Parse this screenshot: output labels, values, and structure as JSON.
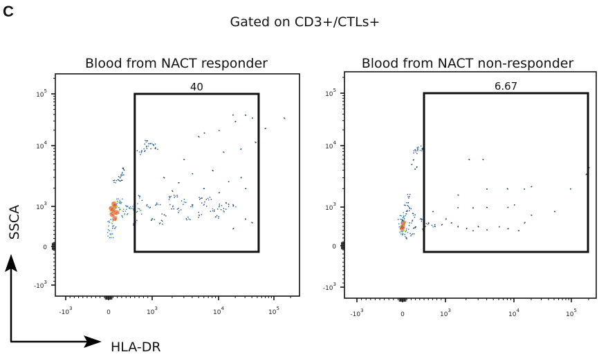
{
  "figure": {
    "panel_letter": "C",
    "title": "Gated on CD3+/CTLs+",
    "y_axis_label": "SSCA",
    "x_axis_label": "HLA-DR"
  },
  "colors": {
    "density": [
      "#1d3f73",
      "#1f74b0",
      "#b9d33e",
      "#e5421b"
    ],
    "gate": "#111111",
    "frame": "#111111"
  },
  "chart_data": [
    {
      "type": "scatter",
      "title": "Blood from NACT responder",
      "xlabel": "HLA-DR",
      "ylabel": "SSCA",
      "x_scale": "biexponential",
      "y_scale": "biexponential",
      "x_ticks": [
        {
          "value": -1000,
          "base": "-10",
          "exp": "3"
        },
        {
          "value": 0,
          "base": "0",
          "exp": ""
        },
        {
          "value": 1000,
          "base": "10",
          "exp": "3"
        },
        {
          "value": 10000,
          "base": "10",
          "exp": "4"
        },
        {
          "value": 100000,
          "base": "10",
          "exp": "5"
        }
      ],
      "y_ticks": [
        {
          "value": -1000,
          "base": "-10",
          "exp": "3"
        },
        {
          "value": 0,
          "base": "0",
          "exp": ""
        },
        {
          "value": 1000,
          "base": "10",
          "exp": "3"
        },
        {
          "value": 10000,
          "base": "10",
          "exp": "4"
        },
        {
          "value": 100000,
          "base": "10",
          "exp": "5"
        }
      ],
      "gate": {
        "label": "40",
        "x_min": 600,
        "x_max": 53000,
        "y_min": -140,
        "y_max": 100000
      },
      "points": [
        [
          100,
          900,
          3
        ],
        [
          150,
          1000,
          3
        ],
        [
          80,
          800,
          3
        ],
        [
          120,
          1100,
          3
        ],
        [
          60,
          950,
          3
        ],
        [
          180,
          850,
          3
        ],
        [
          140,
          700,
          3
        ],
        [
          50,
          600,
          2
        ],
        [
          200,
          1200,
          2
        ],
        [
          300,
          900,
          2
        ],
        [
          400,
          1000,
          2
        ],
        [
          250,
          1300,
          2
        ],
        [
          90,
          500,
          2
        ],
        [
          60,
          400,
          2
        ],
        [
          350,
          800,
          2
        ],
        [
          500,
          950,
          2
        ],
        [
          600,
          1000,
          2
        ],
        [
          700,
          900,
          2
        ],
        [
          40,
          300,
          2
        ],
        [
          900,
          1000,
          1
        ],
        [
          1200,
          1100,
          1
        ],
        [
          1500,
          800,
          1
        ],
        [
          2000,
          1000,
          1
        ],
        [
          2500,
          900,
          1
        ],
        [
          3000,
          1200,
          1
        ],
        [
          4000,
          1000,
          1
        ],
        [
          5000,
          800,
          1
        ],
        [
          6000,
          1100,
          1
        ],
        [
          8000,
          950,
          1
        ],
        [
          10000,
          1000,
          1
        ],
        [
          12000,
          900,
          1
        ],
        [
          15000,
          1100,
          1
        ],
        [
          20000,
          1000,
          1
        ],
        [
          1000,
          700,
          1
        ],
        [
          1800,
          1400,
          1
        ],
        [
          3500,
          700,
          1
        ],
        [
          7000,
          1300,
          1
        ],
        [
          9000,
          750,
          1
        ],
        [
          1300,
          600,
          1
        ],
        [
          2200,
          1500,
          1
        ],
        [
          5500,
          1400,
          1
        ],
        [
          700,
          1400,
          1
        ],
        [
          600,
          600,
          1
        ],
        [
          800,
          9000,
          1
        ],
        [
          900,
          10000,
          1
        ],
        [
          1000,
          11000,
          1
        ],
        [
          700,
          8000,
          1
        ],
        [
          1100,
          9500,
          1
        ],
        [
          850,
          12000,
          1
        ],
        [
          250,
          3000,
          1
        ],
        [
          300,
          3500,
          1
        ],
        [
          200,
          2800,
          1
        ],
        [
          350,
          4000,
          1
        ],
        [
          150,
          2500,
          1
        ],
        [
          1500,
          3000,
          0
        ],
        [
          2500,
          2500,
          0
        ],
        [
          4000,
          3500,
          0
        ],
        [
          6000,
          2000,
          0
        ],
        [
          8000,
          4000,
          0
        ],
        [
          15000,
          2600,
          0
        ],
        [
          25000,
          3000,
          0
        ],
        [
          30000,
          2000,
          0
        ],
        [
          3000,
          6000,
          0
        ],
        [
          5000,
          15000,
          0
        ],
        [
          10000,
          20000,
          0
        ],
        [
          20000,
          30000,
          0
        ],
        [
          30000,
          40000,
          0
        ],
        [
          18000,
          40000,
          0
        ],
        [
          40000,
          35000,
          0
        ],
        [
          12000,
          8000,
          0
        ],
        [
          25000,
          9000,
          0
        ],
        [
          6000,
          18000,
          0
        ],
        [
          45000,
          12000,
          0
        ],
        [
          70000,
          22000,
          0
        ],
        [
          150000,
          35000,
          0
        ],
        [
          2000,
          1800,
          0
        ],
        [
          10000,
          1700,
          0
        ],
        [
          30000,
          700,
          0
        ],
        [
          40000,
          600,
          0
        ],
        [
          18000,
          450,
          0
        ]
      ]
    },
    {
      "type": "scatter",
      "title": "Blood from NACT non-responder",
      "xlabel": "HLA-DR",
      "ylabel": "SSCA",
      "x_scale": "biexponential",
      "y_scale": "biexponential",
      "x_ticks": [
        {
          "value": -1000,
          "base": "-10",
          "exp": "3"
        },
        {
          "value": 0,
          "base": "0",
          "exp": ""
        },
        {
          "value": 1000,
          "base": "10",
          "exp": "3"
        },
        {
          "value": 10000,
          "base": "10",
          "exp": "4"
        },
        {
          "value": 100000,
          "base": "10",
          "exp": "5"
        }
      ],
      "y_ticks": [
        {
          "value": -1000,
          "base": "-10",
          "exp": "3"
        },
        {
          "value": 0,
          "base": "0",
          "exp": ""
        },
        {
          "value": 1000,
          "base": "10",
          "exp": "3"
        },
        {
          "value": 10000,
          "base": "10",
          "exp": "4"
        },
        {
          "value": 100000,
          "base": "10",
          "exp": "5"
        }
      ],
      "gate": {
        "label": "6.67",
        "x_min": 500,
        "x_max": 195000,
        "y_min": -150,
        "y_max": 100000
      },
      "points": [
        [
          0,
          500,
          3
        ],
        [
          20,
          600,
          3
        ],
        [
          -10,
          450,
          3
        ],
        [
          30,
          700,
          2
        ],
        [
          -40,
          550,
          2
        ],
        [
          60,
          400,
          2
        ],
        [
          10,
          800,
          2
        ],
        [
          -20,
          350,
          2
        ],
        [
          100,
          900,
          1
        ],
        [
          150,
          1000,
          1
        ],
        [
          200,
          600,
          1
        ],
        [
          300,
          500,
          1
        ],
        [
          400,
          700,
          1
        ],
        [
          500,
          450,
          1
        ],
        [
          600,
          600,
          1
        ],
        [
          700,
          500,
          1
        ],
        [
          200,
          300,
          1
        ],
        [
          80,
          1200,
          1
        ],
        [
          120,
          1500,
          1
        ],
        [
          250,
          800,
          1
        ],
        [
          -60,
          700,
          1
        ],
        [
          50,
          250,
          1
        ],
        [
          350,
          9000,
          1
        ],
        [
          400,
          8500,
          1
        ],
        [
          300,
          8000,
          1
        ],
        [
          450,
          9200,
          1
        ],
        [
          250,
          6000,
          0
        ],
        [
          200,
          5000,
          0
        ],
        [
          280,
          4200,
          0
        ],
        [
          320,
          4500,
          0
        ],
        [
          900,
          550,
          0
        ],
        [
          1200,
          600,
          0
        ],
        [
          1500,
          500,
          0
        ],
        [
          2000,
          450,
          0
        ],
        [
          2500,
          400,
          0
        ],
        [
          3000,
          500,
          0
        ],
        [
          4000,
          420,
          0
        ],
        [
          6000,
          500,
          0
        ],
        [
          8000,
          450,
          0
        ],
        [
          12000,
          400,
          0
        ],
        [
          15000,
          600,
          0
        ],
        [
          20000,
          800,
          0
        ],
        [
          1500,
          1000,
          0
        ],
        [
          2500,
          1000,
          0
        ],
        [
          4000,
          1000,
          0
        ],
        [
          8000,
          1000,
          0
        ],
        [
          10000,
          1100,
          0
        ],
        [
          15000,
          2000,
          0
        ],
        [
          20000,
          2200,
          0
        ],
        [
          50000,
          900,
          0
        ],
        [
          1500,
          1600,
          0
        ],
        [
          2200,
          6000,
          0
        ],
        [
          3500,
          6000,
          0
        ],
        [
          4000,
          2000,
          0
        ],
        [
          8000,
          2000,
          0
        ],
        [
          95000,
          2000,
          0
        ],
        [
          200000,
          4500,
          0
        ],
        [
          180000,
          3500,
          0
        ],
        [
          1000,
          700,
          0
        ],
        [
          700,
          900,
          0
        ]
      ]
    }
  ]
}
